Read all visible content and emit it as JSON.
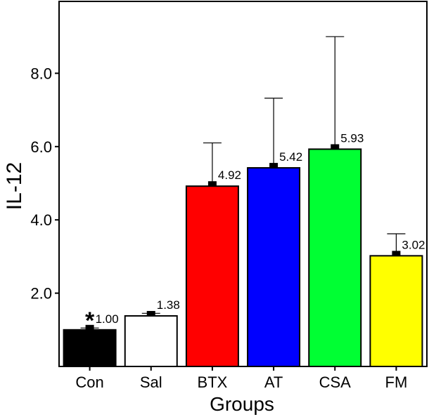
{
  "chart_data": {
    "type": "bar",
    "title": "",
    "xlabel": "Groups",
    "ylabel": "IL-12",
    "ylim": [
      0,
      10
    ],
    "yticks": [
      2.0,
      4.0,
      6.0,
      8.0
    ],
    "ytick_labels": [
      "2.0",
      "4.0",
      "6.0",
      "8.0"
    ],
    "categories": [
      "Con",
      "Sal",
      "BTX",
      "AT",
      "CSA",
      "FM"
    ],
    "values": [
      1.0,
      1.38,
      4.92,
      5.42,
      5.93,
      3.02
    ],
    "value_labels": [
      "1.00",
      "1.38",
      "4.92",
      "5.42",
      "5.93",
      "3.02"
    ],
    "error_upper": [
      1.05,
      1.45,
      6.1,
      7.32,
      9.0,
      3.62
    ],
    "colors": [
      "#000000",
      "#ffffff",
      "#ff0000",
      "#0000ff",
      "#00ff33",
      "#ffff00"
    ],
    "annotation": "*",
    "annotation_category": "Con",
    "grid": false
  }
}
